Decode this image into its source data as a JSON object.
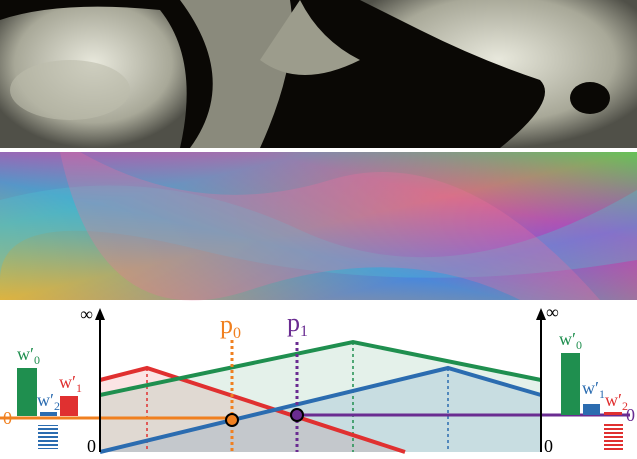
{
  "figure": {
    "diagram": {
      "left_axis": {
        "top": "∞",
        "bottom": "0"
      },
      "right_axis": {
        "top": "∞",
        "bottom": "0"
      },
      "points": [
        {
          "base": "p",
          "sub": "0"
        },
        {
          "base": "p",
          "sub": "1"
        }
      ],
      "left_weights": {
        "zero": "0",
        "labels": [
          {
            "base": "w′",
            "sub": "0"
          },
          {
            "base": "w′",
            "sub": "1"
          },
          {
            "base": "w′",
            "sub": "2"
          }
        ]
      },
      "right_weights": {
        "zero": "0",
        "labels": [
          {
            "base": "w′",
            "sub": "0"
          },
          {
            "base": "w′",
            "sub": "1"
          },
          {
            "base": "w′",
            "sub": "2"
          }
        ]
      }
    }
  }
}
